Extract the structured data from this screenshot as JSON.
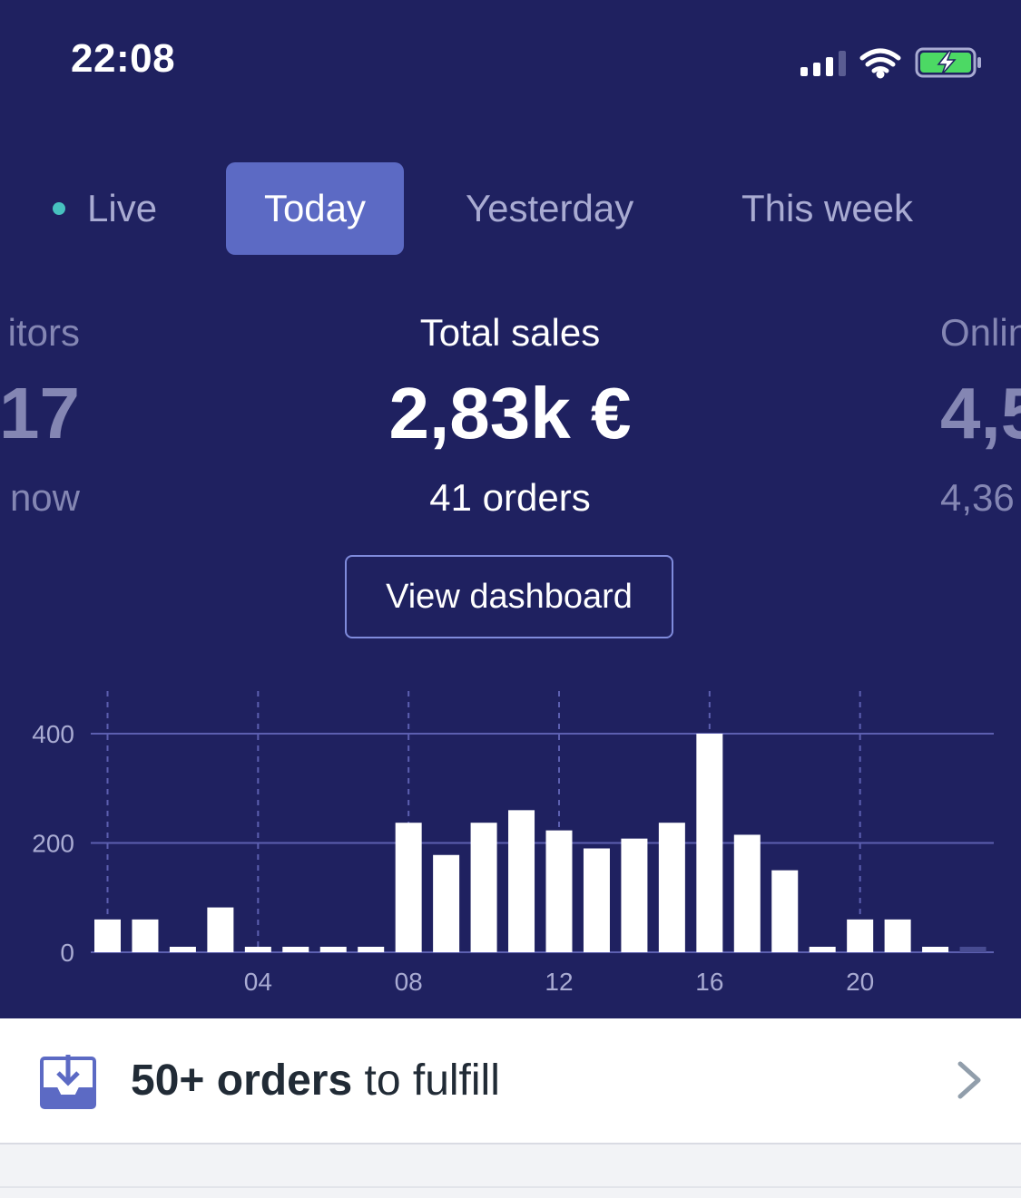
{
  "status_bar": {
    "time": "22:08"
  },
  "tabs": [
    {
      "label": "Live",
      "selected": false
    },
    {
      "label": "Today",
      "selected": true
    },
    {
      "label": "Yesterday",
      "selected": false
    },
    {
      "label": "This week",
      "selected": false
    }
  ],
  "metrics": {
    "left": {
      "label": "itors",
      "value": "17",
      "sub": "now"
    },
    "main": {
      "label": "Total sales",
      "value": "2,83k €",
      "sub": "41 orders"
    },
    "right": {
      "label": "Onlin",
      "value": "4,5",
      "sub": "4,36"
    }
  },
  "view_dashboard_label": "View dashboard",
  "chart_data": {
    "type": "bar",
    "title": "",
    "xlabel": "",
    "ylabel": "",
    "ylim": [
      0,
      400
    ],
    "yticks": [
      "0",
      "200",
      "400"
    ],
    "xticks": [
      "04",
      "08",
      "12",
      "16",
      "20"
    ],
    "x": [
      0,
      1,
      2,
      3,
      4,
      5,
      6,
      7,
      8,
      9,
      10,
      11,
      12,
      13,
      14,
      15,
      16,
      17,
      18,
      19,
      20,
      21,
      22,
      23
    ],
    "values": [
      60,
      60,
      10,
      82,
      10,
      10,
      10,
      10,
      237,
      178,
      237,
      260,
      223,
      190,
      208,
      237,
      400,
      215,
      150,
      10,
      60,
      60,
      10,
      10
    ],
    "colors": {
      "bar": "#ffffff",
      "future_bar": "#474b91",
      "grid": "#5c5fb0",
      "axis_text": "#a9abd2"
    },
    "grid": true
  },
  "fulfill_card": {
    "count_text": "50+ orders",
    "suffix_text": " to fulfill"
  },
  "colors": {
    "background": "#1f2160",
    "accent": "#5c6ac4",
    "live_dot": "#47c1bf"
  }
}
